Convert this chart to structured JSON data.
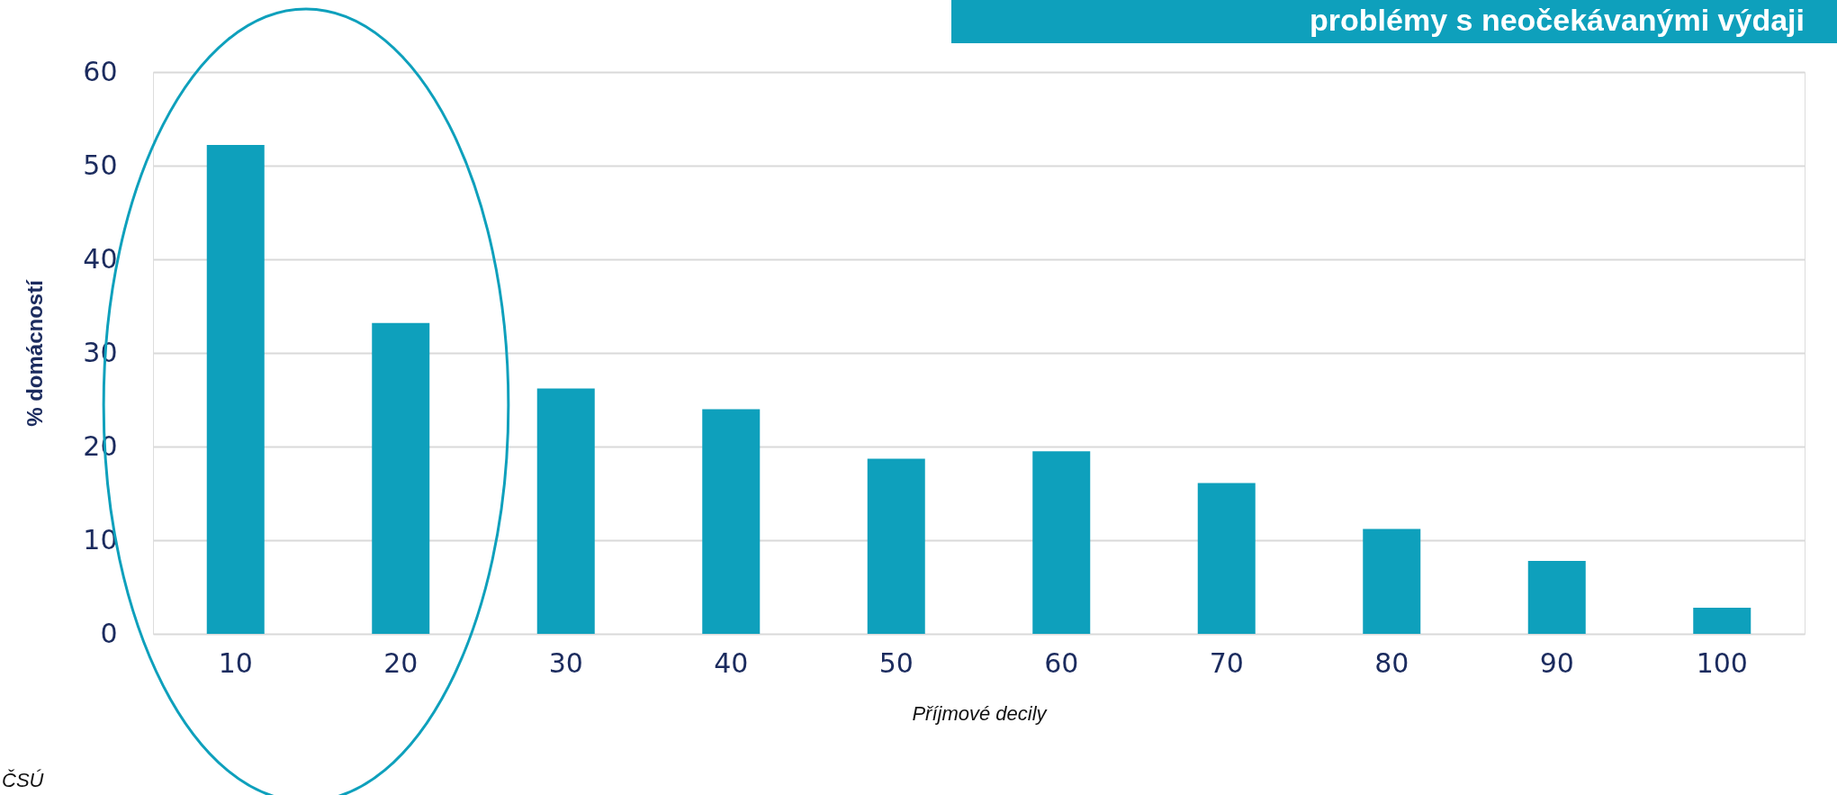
{
  "chart_data": {
    "type": "bar",
    "title": "problémy s neočekávanými výdaji",
    "xlabel": "Příjmové decily",
    "ylabel": "% domácností",
    "categories": [
      "10",
      "20",
      "30",
      "40",
      "50",
      "60",
      "70",
      "80",
      "90",
      "100"
    ],
    "values": [
      52.2,
      33.2,
      26.2,
      24.0,
      18.7,
      19.5,
      16.1,
      11.2,
      7.8,
      2.8
    ],
    "color": "#0ea0bc",
    "ylim": [
      0,
      60
    ],
    "yticks": [
      0,
      10,
      20,
      30,
      40,
      50,
      60
    ],
    "grid": "y",
    "annotations": [
      "ČSÚ"
    ]
  }
}
